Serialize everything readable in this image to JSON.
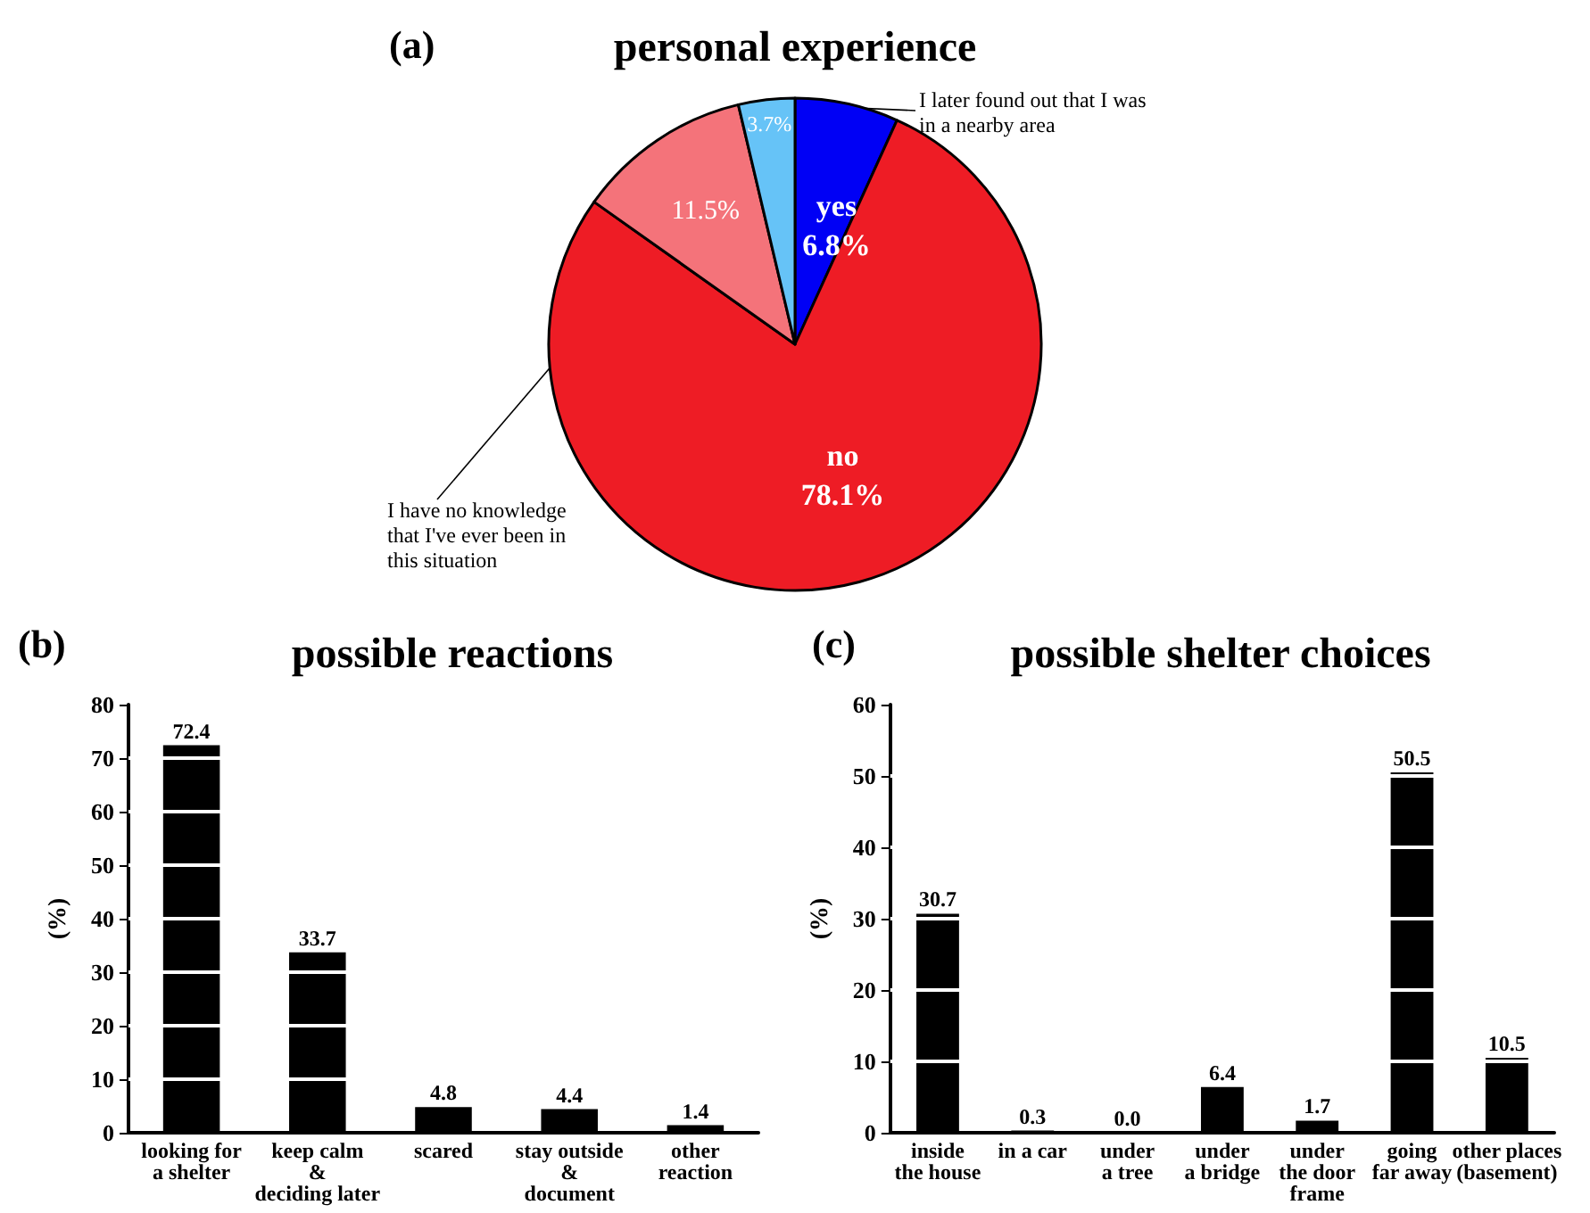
{
  "chart_data": [
    {
      "type": "pie",
      "title": "personal experience",
      "annotations": [
        "(a)"
      ],
      "categories": [
        "yes",
        "no",
        "I have no knowledge that I've ever been in this situation",
        "I later found out that I was in a nearby area"
      ],
      "values": [
        6.8,
        78.1,
        11.5,
        3.7
      ],
      "colors": [
        "#0000f5",
        "#ee1c25",
        "#f4737a",
        "#66c3f7"
      ],
      "value_labels": [
        "6.8%",
        "78.1%",
        "11.5%",
        "3.7%"
      ]
    },
    {
      "type": "bar",
      "title": "possible reactions",
      "annotations": [
        "(b)"
      ],
      "ylabel": "(%)",
      "categories": [
        "looking for\na shelter",
        "keep calm\n&\ndeciding later",
        "scared",
        "stay outside\n&\ndocument",
        "other\nreaction"
      ],
      "values": [
        72.4,
        33.7,
        4.8,
        4.4,
        1.4
      ],
      "color": "#000000",
      "ylim": [
        0,
        80
      ],
      "yticks": [
        0,
        10,
        20,
        30,
        40,
        50,
        60,
        70,
        80
      ],
      "grid": "y",
      "data_labels": true
    },
    {
      "type": "bar",
      "title": "possible shelter choices",
      "annotations": [
        "(c)"
      ],
      "ylabel": "(%)",
      "categories": [
        "inside\nthe house",
        "in a car",
        "under\na tree",
        "under\na bridge",
        "under\nthe door\nframe",
        "going\nfar away",
        "other places\n(basement)"
      ],
      "values": [
        30.7,
        0.3,
        0.0,
        6.4,
        1.7,
        50.5,
        10.5
      ],
      "value_labels": [
        "30.7",
        "0.3",
        "0.0",
        "6.4",
        "1.7",
        "50.5",
        "10.5"
      ],
      "color": "#000000",
      "ylim": [
        0,
        60
      ],
      "yticks": [
        0,
        10,
        20,
        30,
        40,
        50,
        60
      ],
      "grid": "y"
    }
  ]
}
